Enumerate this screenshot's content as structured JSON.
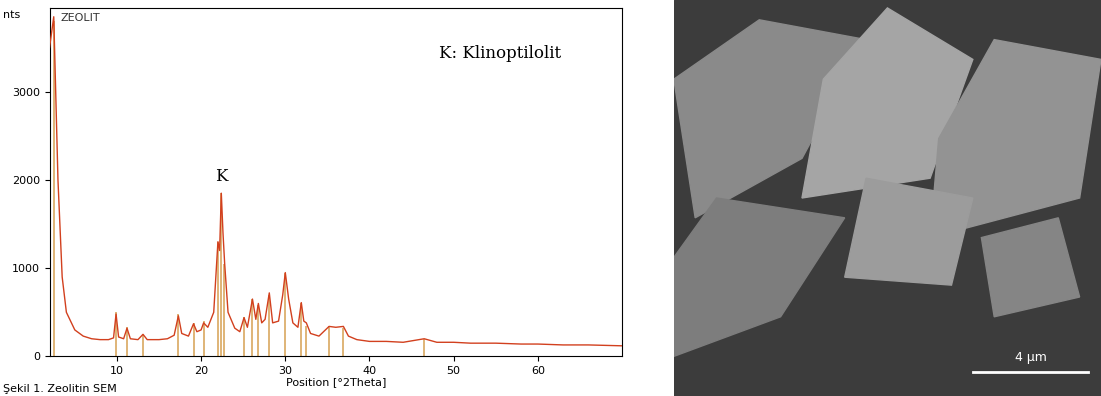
{
  "chart_data": {
    "type": "line",
    "title": "ZEOLIT",
    "y_label": "nts",
    "x_label": "Position [°2Theta]",
    "annotations": [
      {
        "text": "K",
        "x": 22.4,
        "y": 1850
      },
      {
        "text": "K: Klinoptilolit"
      }
    ],
    "xlim": [
      2,
      70
    ],
    "xticks": [
      10,
      20,
      30,
      40,
      50,
      60
    ],
    "ylim": [
      0,
      3950
    ],
    "yticks": [
      0,
      1000,
      2000,
      3000
    ],
    "grid": false,
    "series": [
      {
        "type": "line",
        "color": "#d2401e",
        "x": [
          2.0,
          2.5,
          3.0,
          3.5,
          4.0,
          5.0,
          6.0,
          7.0,
          8.0,
          9.0,
          9.6,
          9.9,
          10.2,
          10.8,
          11.2,
          11.6,
          12.5,
          13.1,
          13.6,
          15.0,
          16.0,
          16.8,
          17.3,
          17.7,
          18.5,
          19.1,
          19.5,
          20.0,
          20.3,
          20.8,
          21.5,
          22.0,
          22.2,
          22.4,
          22.6,
          22.8,
          23.2,
          24.0,
          24.6,
          25.1,
          25.5,
          26.1,
          26.5,
          26.8,
          27.2,
          27.6,
          28.1,
          28.5,
          29.2,
          29.7,
          30.0,
          30.4,
          30.9,
          31.5,
          31.9,
          32.2,
          32.5,
          33.0,
          34.0,
          35.2,
          36.0,
          36.9,
          37.5,
          38.5,
          40.0,
          42.0,
          44.0,
          46.5,
          48.0,
          50.0,
          52.0,
          55.0,
          58.0,
          60.0,
          63.0,
          66.0,
          70.0
        ],
        "values": [
          3500,
          3850,
          2000,
          900,
          500,
          300,
          230,
          200,
          190,
          190,
          210,
          480,
          220,
          200,
          320,
          200,
          190,
          250,
          190,
          190,
          200,
          240,
          460,
          260,
          230,
          370,
          280,
          300,
          380,
          330,
          500,
          1300,
          1200,
          1850,
          1400,
          1050,
          500,
          320,
          280,
          440,
          330,
          650,
          420,
          600,
          380,
          420,
          720,
          380,
          400,
          700,
          950,
          650,
          380,
          330,
          610,
          400,
          380,
          260,
          230,
          340,
          330,
          340,
          230,
          190,
          170,
          170,
          160,
          200,
          160,
          160,
          150,
          150,
          140,
          140,
          130,
          130,
          120
        ]
      },
      {
        "type": "bar",
        "color": "#d9a860",
        "x": [
          2.5,
          9.9,
          11.2,
          13.1,
          17.3,
          19.1,
          20.3,
          22.0,
          22.4,
          22.7,
          25.1,
          26.1,
          26.8,
          28.1,
          30.0,
          31.9,
          32.5,
          35.2,
          36.9,
          46.5
        ],
        "values": [
          3800,
          500,
          330,
          250,
          480,
          380,
          400,
          1300,
          1850,
          1050,
          450,
          650,
          580,
          700,
          950,
          600,
          350,
          340,
          320,
          200
        ]
      }
    ]
  },
  "sem_image": {
    "scale_bar_label": "4 μm"
  },
  "caption": "Şekil 1. Zeolitin SEM"
}
